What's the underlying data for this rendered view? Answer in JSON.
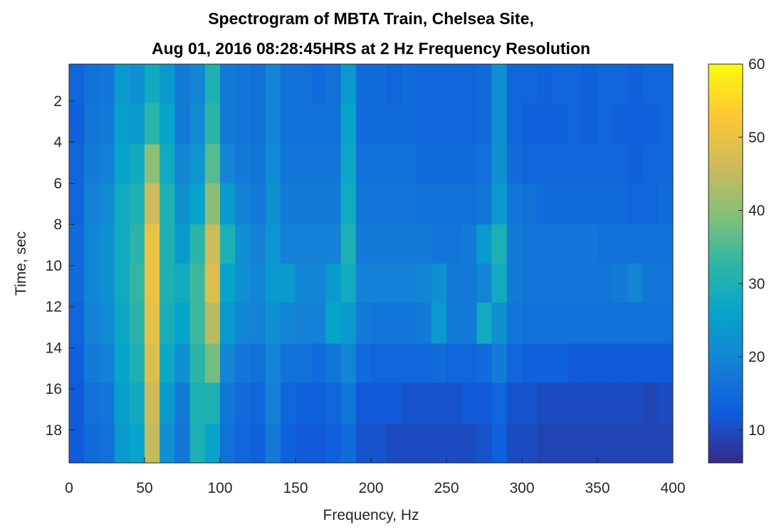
{
  "chart_data": {
    "type": "heatmap",
    "title": [
      "Spectrogram of MBTA Train, Chelsea Site,",
      "Aug 01, 2016 08:28:45HRS at 2 Hz Frequency Resolution"
    ],
    "xlabel": "Frequency, Hz",
    "ylabel": "Time, sec",
    "xlim": [
      0,
      400
    ],
    "ylim": [
      0.2,
      19.6
    ],
    "xticks": [
      0,
      50,
      100,
      150,
      200,
      250,
      300,
      350,
      400
    ],
    "yticks": [
      2,
      4,
      6,
      8,
      10,
      12,
      14,
      16,
      18
    ],
    "x_bins": [
      0,
      10,
      20,
      30,
      40,
      50,
      60,
      70,
      80,
      90,
      100,
      110,
      120,
      130,
      140,
      150,
      160,
      170,
      180,
      190,
      200,
      210,
      220,
      230,
      240,
      250,
      260,
      270,
      280,
      290,
      300,
      310,
      320,
      330,
      340,
      350,
      360,
      370,
      380,
      390,
      400
    ],
    "y_bins": [
      0.2,
      2.1,
      4.1,
      6.0,
      8.0,
      9.9,
      11.8,
      13.8,
      15.7,
      17.7,
      19.6
    ],
    "z": [
      [
        14,
        16,
        17,
        24,
        22,
        28,
        24,
        18,
        20,
        30,
        18,
        17,
        16,
        20,
        16,
        16,
        15,
        16,
        24,
        15,
        15,
        14,
        15,
        14,
        14,
        14,
        14,
        15,
        22,
        14,
        14,
        13,
        14,
        14,
        13,
        14,
        14,
        13,
        14,
        14
      ],
      [
        13,
        17,
        18,
        25,
        24,
        32,
        26,
        18,
        21,
        32,
        18,
        17,
        16,
        20,
        16,
        16,
        16,
        16,
        26,
        15,
        15,
        15,
        15,
        14,
        14,
        14,
        14,
        15,
        22,
        14,
        13,
        13,
        13,
        14,
        13,
        14,
        13,
        13,
        13,
        14
      ],
      [
        14,
        18,
        19,
        26,
        28,
        40,
        28,
        20,
        23,
        36,
        20,
        18,
        17,
        21,
        17,
        17,
        17,
        17,
        27,
        16,
        16,
        16,
        16,
        15,
        15,
        15,
        15,
        16,
        22,
        15,
        14,
        14,
        14,
        14,
        14,
        14,
        14,
        13,
        14,
        14
      ],
      [
        14,
        19,
        21,
        28,
        30,
        46,
        30,
        22,
        26,
        40,
        24,
        19,
        18,
        22,
        18,
        18,
        18,
        18,
        28,
        17,
        17,
        17,
        17,
        16,
        16,
        16,
        16,
        17,
        24,
        17,
        16,
        15,
        15,
        15,
        15,
        15,
        15,
        14,
        14,
        15
      ],
      [
        15,
        20,
        22,
        28,
        32,
        50,
        30,
        24,
        32,
        46,
        30,
        22,
        19,
        23,
        19,
        19,
        19,
        19,
        30,
        18,
        18,
        18,
        18,
        18,
        17,
        17,
        18,
        24,
        30,
        18,
        17,
        17,
        17,
        17,
        17,
        16,
        16,
        16,
        16,
        16
      ],
      [
        15,
        20,
        22,
        28,
        33,
        50,
        30,
        28,
        34,
        48,
        26,
        22,
        20,
        24,
        24,
        20,
        20,
        24,
        28,
        19,
        19,
        19,
        19,
        20,
        22,
        18,
        18,
        20,
        28,
        18,
        17,
        17,
        17,
        17,
        17,
        17,
        18,
        20,
        17,
        17
      ],
      [
        14,
        19,
        21,
        27,
        32,
        49,
        29,
        26,
        34,
        44,
        24,
        20,
        19,
        22,
        20,
        19,
        19,
        26,
        24,
        18,
        17,
        17,
        17,
        18,
        24,
        18,
        18,
        28,
        22,
        17,
        16,
        16,
        16,
        16,
        16,
        16,
        16,
        16,
        16,
        16
      ],
      [
        13,
        18,
        19,
        26,
        30,
        48,
        27,
        22,
        32,
        38,
        20,
        17,
        16,
        20,
        16,
        16,
        15,
        17,
        20,
        15,
        14,
        14,
        14,
        14,
        15,
        14,
        14,
        15,
        18,
        14,
        13,
        13,
        13,
        12,
        12,
        12,
        12,
        12,
        12,
        12
      ],
      [
        12,
        16,
        17,
        25,
        28,
        46,
        24,
        18,
        30,
        30,
        17,
        15,
        14,
        19,
        14,
        13,
        13,
        14,
        17,
        12,
        12,
        12,
        11,
        11,
        11,
        11,
        12,
        12,
        14,
        11,
        11,
        10,
        10,
        10,
        10,
        10,
        10,
        10,
        9,
        10
      ],
      [
        12,
        15,
        16,
        24,
        26,
        45,
        22,
        17,
        30,
        26,
        16,
        14,
        13,
        18,
        13,
        12,
        12,
        13,
        15,
        11,
        11,
        10,
        10,
        10,
        10,
        10,
        10,
        11,
        13,
        10,
        10,
        9,
        9,
        9,
        9,
        9,
        9,
        9,
        9,
        9
      ]
    ],
    "colormap": [
      "#352a87",
      "#0f5cdd",
      "#1481d6",
      "#06a4ca",
      "#2eb7a4",
      "#87bf77",
      "#d1bb59",
      "#fec832",
      "#f9fb0e"
    ],
    "clim": [
      5.5,
      60
    ],
    "cticks": [
      10,
      20,
      30,
      40,
      50,
      60
    ]
  }
}
